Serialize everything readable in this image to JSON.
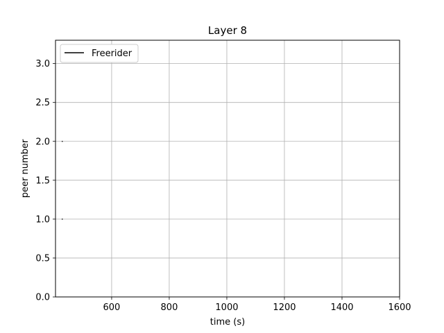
{
  "chart_data": {
    "type": "line",
    "title": "Layer 8",
    "xlabel": "time (s)",
    "ylabel": "peer number",
    "xlim": [
      405,
      1600
    ],
    "ylim": [
      0,
      3.3
    ],
    "xticks": [
      600,
      800,
      1000,
      1200,
      1400,
      1600
    ],
    "xtick_labels": [
      "600",
      "800",
      "1000",
      "1200",
      "1400",
      "1600"
    ],
    "yticks": [
      0,
      0.5,
      1.0,
      1.5,
      2.0,
      2.5,
      3.0
    ],
    "ytick_labels": [
      "0.0",
      "0.5",
      "1.0",
      "1.5",
      "2.0",
      "2.5",
      "3.0"
    ],
    "grid": true,
    "legend_position": "top-left",
    "series": [
      {
        "name": "Freerider",
        "color": "#000000",
        "segments": [
          {
            "x": [
              427,
              430
            ],
            "y": [
              1,
              1
            ]
          },
          {
            "x": [
              427,
              430
            ],
            "y": [
              2,
              2
            ]
          }
        ]
      }
    ]
  }
}
